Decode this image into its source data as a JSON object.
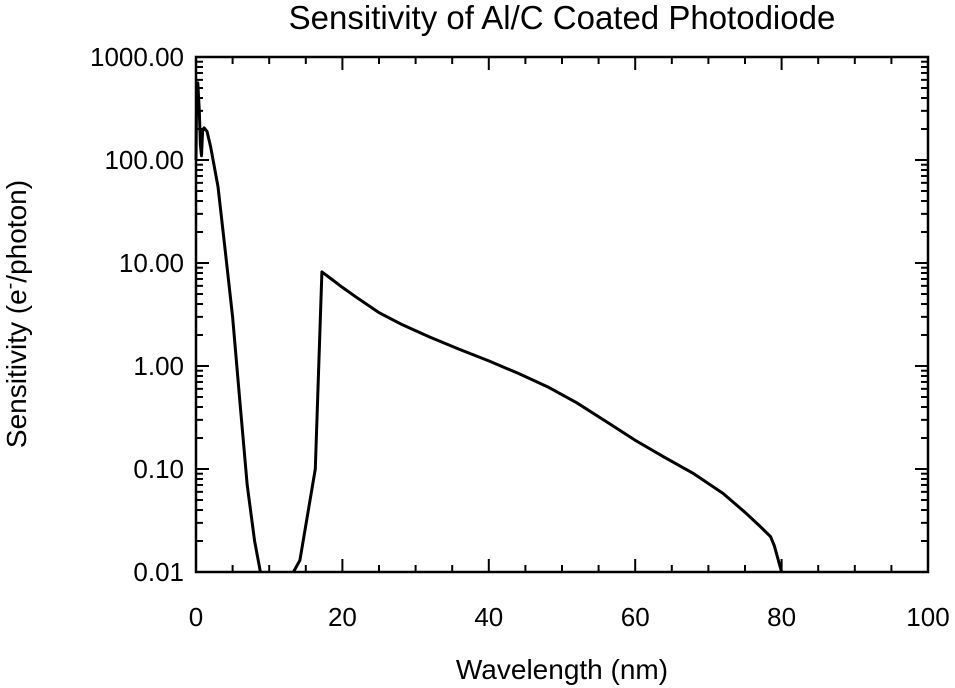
{
  "chart_data": {
    "type": "line",
    "title": "Sensitivity of Al/C Coated Photodiode",
    "xlabel": "Wavelength (nm)",
    "ylabel": {
      "prefix": "Sensitivity (e",
      "superscript": "-",
      "suffix": "/photon)"
    },
    "xlim": [
      0,
      100
    ],
    "ylim": [
      0.01,
      1000
    ],
    "yscale": "log",
    "grid": false,
    "x_ticks": [
      0,
      20,
      40,
      60,
      80,
      100
    ],
    "x_tick_labels": [
      "0",
      "20",
      "40",
      "60",
      "80",
      "100"
    ],
    "y_ticks": [
      0.01,
      0.1,
      1,
      10,
      100,
      1000
    ],
    "y_tick_labels": [
      "0.01",
      "0.10",
      "1.00",
      "10.00",
      "100.00",
      "1000.00"
    ],
    "series": [
      {
        "color": "#000000",
        "segments": [
          [
            [
              0.0,
              100
            ],
            [
              0.1,
              500
            ],
            [
              0.25,
              560
            ],
            [
              0.45,
              300
            ],
            [
              0.6,
              140
            ],
            [
              0.75,
              110
            ],
            [
              0.9,
              190
            ],
            [
              1.1,
              205
            ],
            [
              1.5,
              190
            ],
            [
              2.0,
              135
            ],
            [
              3.0,
              55
            ],
            [
              4.0,
              13
            ],
            [
              5.0,
              3
            ],
            [
              6.0,
              0.45
            ],
            [
              7.0,
              0.07
            ],
            [
              8.0,
              0.02
            ],
            [
              8.8,
              0.01
            ]
          ],
          [
            [
              13.3,
              0.01
            ],
            [
              14.2,
              0.013
            ],
            [
              16.3,
              0.1
            ],
            [
              17.2,
              8.2
            ],
            [
              18.5,
              7.0
            ],
            [
              20.0,
              5.8
            ],
            [
              22.0,
              4.6
            ],
            [
              25.0,
              3.3
            ],
            [
              28.0,
              2.55
            ],
            [
              32.0,
              1.9
            ],
            [
              36.0,
              1.45
            ],
            [
              40.0,
              1.12
            ],
            [
              44.0,
              0.85
            ],
            [
              48.0,
              0.63
            ],
            [
              52.0,
              0.44
            ],
            [
              56.0,
              0.29
            ],
            [
              60.0,
              0.19
            ],
            [
              64.0,
              0.13
            ],
            [
              68.0,
              0.09
            ],
            [
              72.0,
              0.058
            ],
            [
              75.0,
              0.038
            ],
            [
              77.0,
              0.028
            ],
            [
              78.5,
              0.022
            ],
            [
              79.0,
              0.018
            ],
            [
              80.0,
              0.01
            ]
          ]
        ]
      }
    ]
  }
}
